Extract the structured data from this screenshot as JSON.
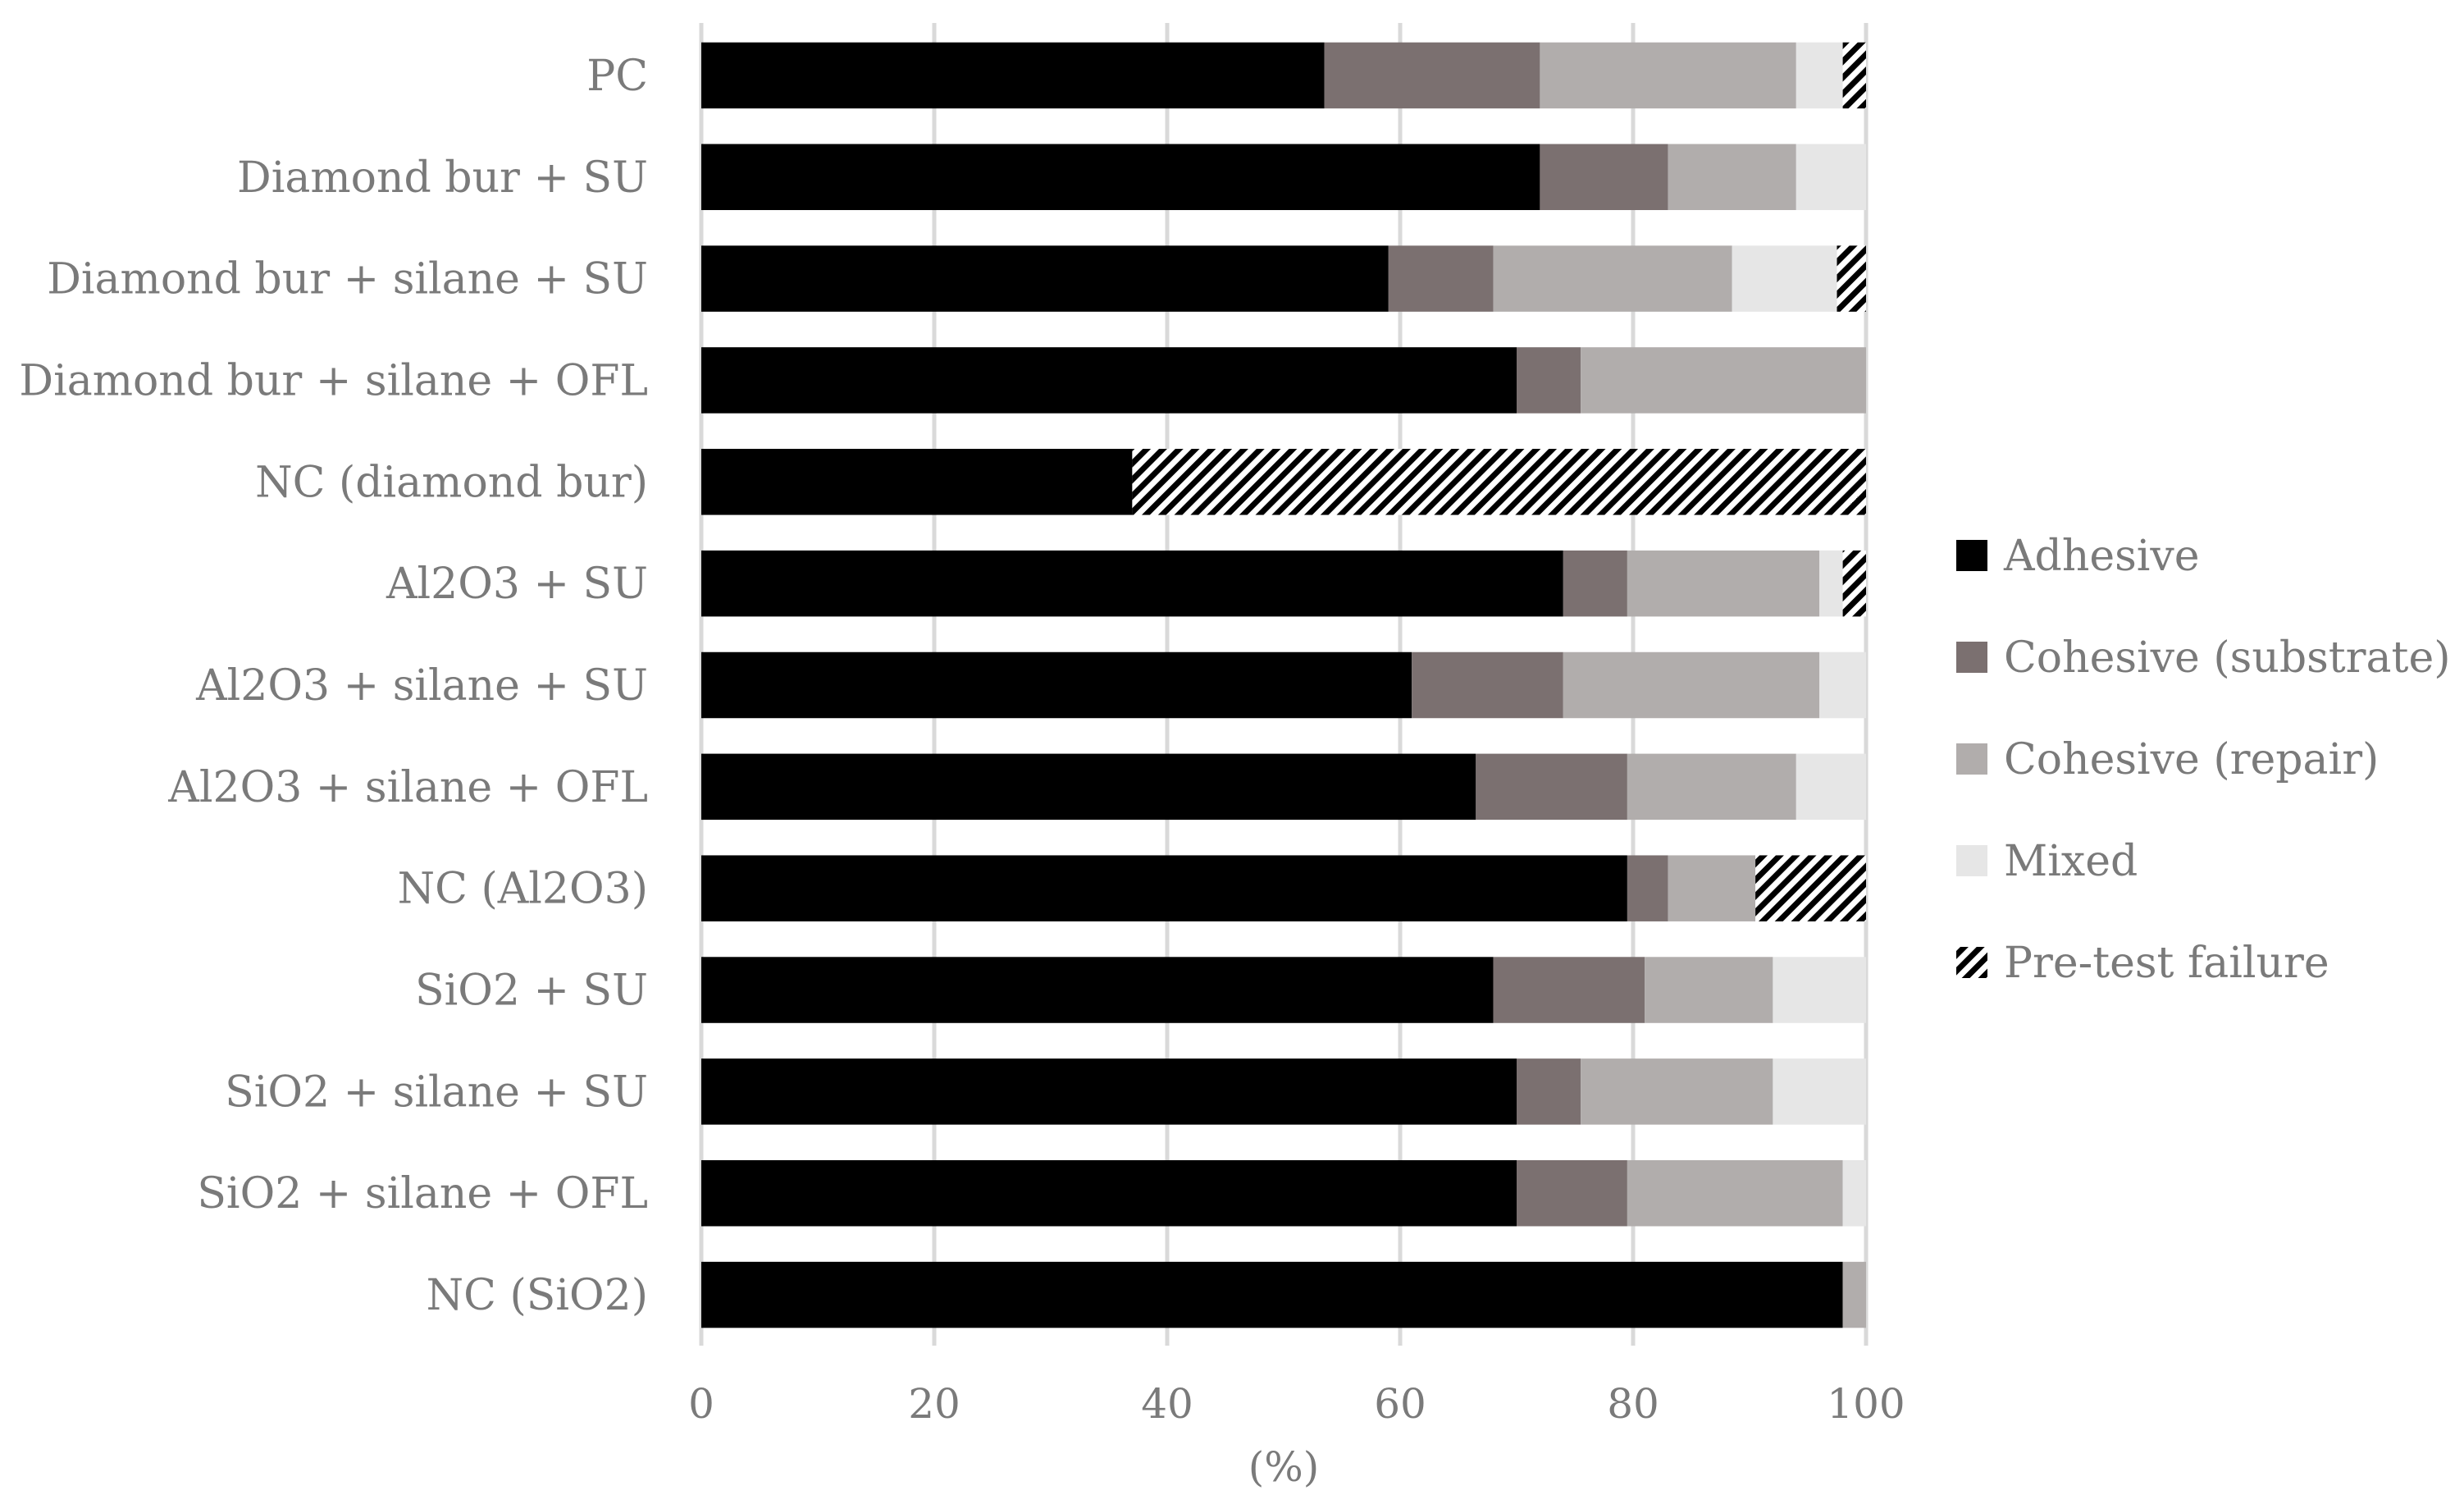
{
  "chart_data": {
    "type": "bar",
    "orientation": "horizontal",
    "stacked": true,
    "xlabel": "(%)",
    "xlim": [
      0,
      100
    ],
    "xticks": [
      "0",
      "20",
      "40",
      "60",
      "80",
      "100"
    ],
    "grid": "vertical",
    "legend_position": "right",
    "categories": [
      "PC",
      "Diamond bur + SU",
      "Diamond bur + silane + SU",
      "Diamond bur + silane + OFL",
      "NC (diamond bur)",
      "Al2O3 + SU",
      "Al2O3 + silane + SU",
      "Al2O3 + silane + OFL",
      "NC (Al2O3)",
      "SiO2 + SU",
      "SiO2 + silane + SU",
      "SiO2 + silane + OFL",
      "NC (SiO2)"
    ],
    "series": [
      {
        "name": "Adhesive",
        "color": "#000000",
        "pattern": "solid",
        "values": [
          53.5,
          72,
          59,
          70,
          37,
          74,
          61,
          66.5,
          79.5,
          68,
          70,
          70,
          98
        ]
      },
      {
        "name": "Cohesive (substrate)",
        "color": "#7b7070",
        "pattern": "solid",
        "values": [
          18.5,
          11,
          9,
          5.5,
          0,
          5.5,
          13,
          13,
          3.5,
          13,
          5.5,
          9.5,
          0
        ]
      },
      {
        "name": "Cohesive (repair)",
        "color": "#b1adac",
        "pattern": "solid",
        "values": [
          22,
          11,
          20.5,
          24.5,
          0,
          16.5,
          22,
          14.5,
          7.5,
          11,
          16.5,
          18.5,
          2
        ]
      },
      {
        "name": "Mixed",
        "color": "#e6e6e6",
        "pattern": "solid",
        "values": [
          4,
          6,
          9,
          0,
          0,
          2,
          4,
          6,
          0,
          8,
          8,
          2,
          0
        ]
      },
      {
        "name": "Pre-test failure",
        "color": "#000000",
        "pattern": "diagonal-hatch",
        "values": [
          2,
          0,
          2.5,
          0,
          63,
          2,
          0,
          0,
          9.5,
          0,
          0,
          0,
          0
        ]
      }
    ]
  }
}
